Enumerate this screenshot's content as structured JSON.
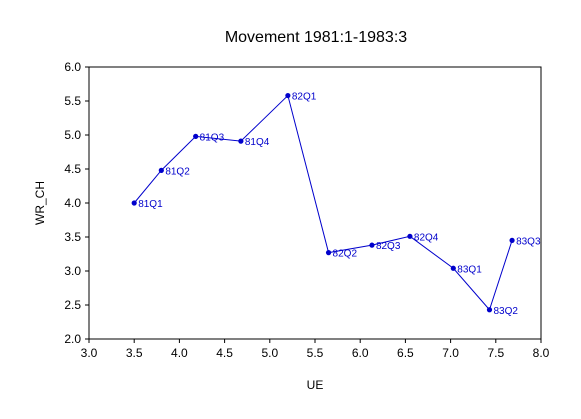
{
  "chart_data": {
    "type": "line",
    "title": "Movement 1981:1-1983:3",
    "xlabel": "UE",
    "ylabel": "WR_CH",
    "xlim": [
      3.0,
      8.0
    ],
    "ylim": [
      2.0,
      6.0
    ],
    "xticks": [
      "3.0",
      "3.5",
      "4.0",
      "4.5",
      "5.0",
      "5.5",
      "6.0",
      "6.5",
      "7.0",
      "7.5",
      "8.0"
    ],
    "yticks": [
      "2.0",
      "2.5",
      "3.0",
      "3.5",
      "4.0",
      "4.5",
      "5.0",
      "5.5",
      "6.0"
    ],
    "grid": false,
    "legend": "none",
    "line_color": "#0000cc",
    "marker_color": "#0000cc",
    "label_color": "#0000cc",
    "points": [
      {
        "label": "81Q1",
        "x": 3.5,
        "y": 4.0
      },
      {
        "label": "81Q2",
        "x": 3.8,
        "y": 4.48
      },
      {
        "label": "81Q3",
        "x": 4.18,
        "y": 4.98
      },
      {
        "label": "81Q4",
        "x": 4.68,
        "y": 4.91
      },
      {
        "label": "82Q1",
        "x": 5.2,
        "y": 5.58
      },
      {
        "label": "82Q2",
        "x": 5.65,
        "y": 3.27
      },
      {
        "label": "82Q3",
        "x": 6.13,
        "y": 3.38
      },
      {
        "label": "82Q4",
        "x": 6.55,
        "y": 3.51
      },
      {
        "label": "83Q1",
        "x": 7.03,
        "y": 3.04
      },
      {
        "label": "83Q2",
        "x": 7.43,
        "y": 2.43
      },
      {
        "label": "83Q3",
        "x": 7.68,
        "y": 3.45
      }
    ]
  }
}
